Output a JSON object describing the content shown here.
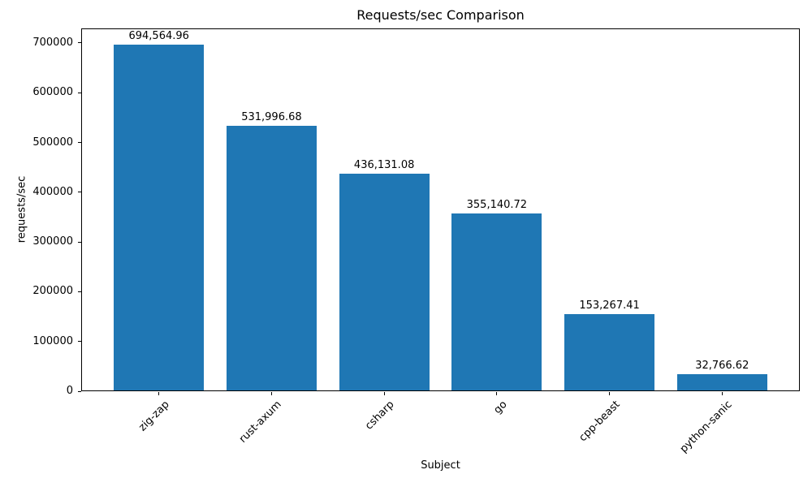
{
  "chart_data": {
    "type": "bar",
    "title": "Requests/sec Comparison",
    "xlabel": "Subject",
    "ylabel": "requests/sec",
    "categories": [
      "zig-zap",
      "rust-axum",
      "csharp",
      "go",
      "cpp-beast",
      "python-sanic"
    ],
    "values": [
      694564.96,
      531996.68,
      436131.08,
      355140.72,
      153267.41,
      32766.62
    ],
    "value_labels": [
      "694,564.96",
      "531,996.68",
      "436,131.08",
      "355,140.72",
      "153,267.41",
      "32,766.62"
    ],
    "yticks": [
      0,
      100000,
      200000,
      300000,
      400000,
      500000,
      600000,
      700000
    ],
    "ytick_labels": [
      "0",
      "100000",
      "200000",
      "300000",
      "400000",
      "500000",
      "600000",
      "700000"
    ],
    "ylim": [
      0,
      729293.21
    ],
    "bar_color": "#1f77b4",
    "grid": false,
    "legend": null
  }
}
